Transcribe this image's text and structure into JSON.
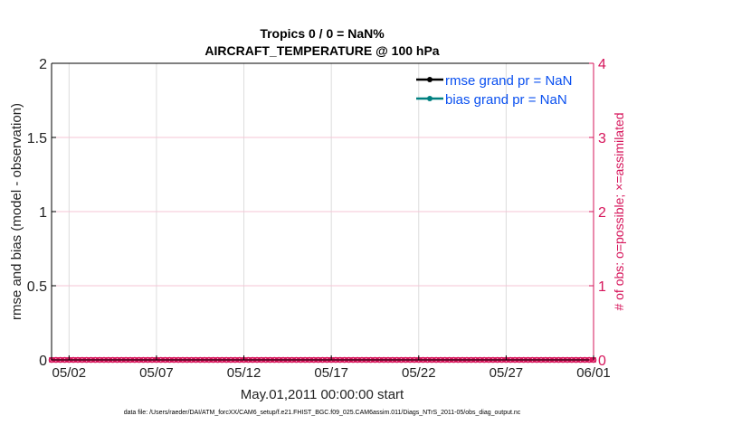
{
  "chart_data": {
    "type": "line",
    "title": [
      "Tropics 0 / 0 = NaN%",
      "AIRCRAFT_TEMPERATURE @ 100 hPa"
    ],
    "xlabel": "May.01,2011 00:00:00 start",
    "ylabel": "rmse and bias (model - observation)",
    "ylabel_right": "# of obs: o=possible; ×=assimilated",
    "footnote": "data file: /Users/raeder/DAI/ATM_forcXX/CAM6_setup/f.e21.FHIST_BGC.f09_025.CAM6assim.011/Diags_NTrS_2011-05/obs_diag_output.nc",
    "xlim": [
      "2011-05-01",
      "2011-06-01"
    ],
    "ylim": [
      0,
      2
    ],
    "ylim_right": [
      0,
      4
    ],
    "x_ticks": [
      {
        "date": "2011-05-02",
        "label": "05/02"
      },
      {
        "date": "2011-05-07",
        "label": "05/07"
      },
      {
        "date": "2011-05-12",
        "label": "05/12"
      },
      {
        "date": "2011-05-17",
        "label": "05/17"
      },
      {
        "date": "2011-05-22",
        "label": "05/22"
      },
      {
        "date": "2011-05-27",
        "label": "05/27"
      },
      {
        "date": "2011-06-01",
        "label": "06/01"
      }
    ],
    "y_ticks": [
      "0",
      "0.5",
      "1",
      "1.5",
      "2"
    ],
    "y_ticks_right": [
      "0",
      "1",
      "2",
      "3",
      "4"
    ],
    "grid": true,
    "legend_placement": "top-right",
    "series": [
      {
        "name": "rmse grand pr = NaN",
        "color": "#000000",
        "values": []
      },
      {
        "name": "bias grand pr = NaN",
        "color": "#008080",
        "values": []
      }
    ],
    "obs_counts": {
      "color": "#d6145a",
      "x_start": "2011-05-01 00:00",
      "x_end": "2011-06-01 00:00",
      "step_hours": 6,
      "possible": 0,
      "assimilated": 0
    },
    "colors": {
      "left_axis": "#000000",
      "right_axis": "#d6145a",
      "legend_text": "#0a50f0",
      "grid": "#dcdcdc"
    }
  }
}
